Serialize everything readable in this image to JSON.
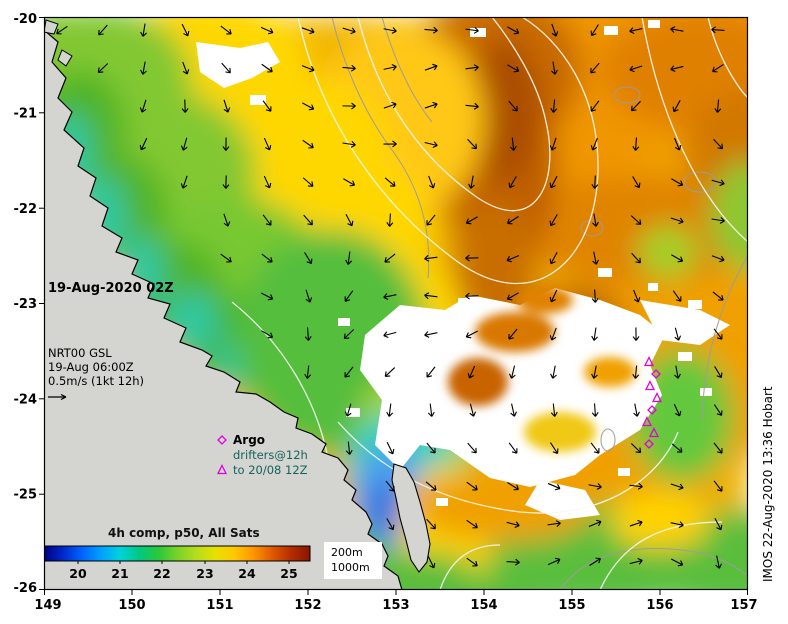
{
  "title": {
    "date_label": "19-Aug-2020 02Z"
  },
  "annotations": {
    "nrt_line1": "NRT00 GSL",
    "nrt_line2": "19-Aug 06:00Z",
    "nrt_line3": "0.5m/s (1kt 12h)",
    "comp_label": "4h comp, p50, All Sats",
    "credit": "IMOS 22-Aug-2020 13:36 Hobart"
  },
  "argo": {
    "label": "Argo",
    "line2": "drifters@12h",
    "line3": "to 20/08 12Z",
    "marker_color": "#e000e0",
    "markers": [
      [
        649,
        362
      ],
      [
        656,
        374
      ],
      [
        650,
        386
      ],
      [
        657,
        398
      ],
      [
        652,
        410
      ],
      [
        647,
        422
      ],
      [
        654,
        433
      ],
      [
        649,
        444
      ]
    ]
  },
  "axes": {
    "x_ticks": [
      "149",
      "150",
      "151",
      "152",
      "153",
      "154",
      "155",
      "156",
      "157"
    ],
    "y_ticks": [
      "-20",
      "-21",
      "-22",
      "-23",
      "-24",
      "-25",
      "-26"
    ]
  },
  "colorbar": {
    "ticks": [
      "20",
      "21",
      "22",
      "23",
      "24",
      "25"
    ],
    "colors": [
      "#000082",
      "#0028c8",
      "#0064ff",
      "#00a0ff",
      "#00d2dc",
      "#00c882",
      "#28c83c",
      "#78d228",
      "#b4dc1e",
      "#e6e100",
      "#ffc800",
      "#ff9600",
      "#e05a00",
      "#b42d00",
      "#8c1400"
    ]
  },
  "contour_legend": {
    "line1": "200m",
    "line2": "1000m"
  },
  "quiver": {
    "color": "#000000",
    "step_x": 41,
    "step_y": 38
  }
}
